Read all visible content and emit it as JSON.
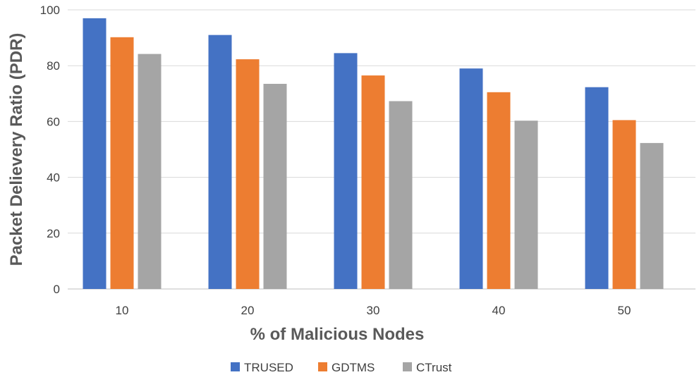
{
  "chart_data": {
    "type": "bar",
    "title": "",
    "xlabel": "% of Malicious Nodes",
    "ylabel": "Packet Delievery Ratio (PDR)",
    "categories": [
      "10",
      "20",
      "30",
      "40",
      "50"
    ],
    "series": [
      {
        "name": "TRUSED",
        "color": "#4472c4",
        "values": [
          97,
          91,
          84.5,
          79,
          72.3
        ]
      },
      {
        "name": "GDTMS",
        "color": "#ed7d31",
        "values": [
          90.2,
          82.3,
          76.5,
          70.5,
          60.5
        ]
      },
      {
        "name": "CTrust",
        "color": "#a5a5a5",
        "values": [
          84.2,
          73.5,
          67.3,
          60.3,
          52.3
        ]
      }
    ],
    "ylim": [
      0,
      100
    ],
    "yticks": [
      "0",
      "20",
      "40",
      "60",
      "80",
      "100"
    ],
    "grid": true,
    "legend_position": "bottom"
  }
}
